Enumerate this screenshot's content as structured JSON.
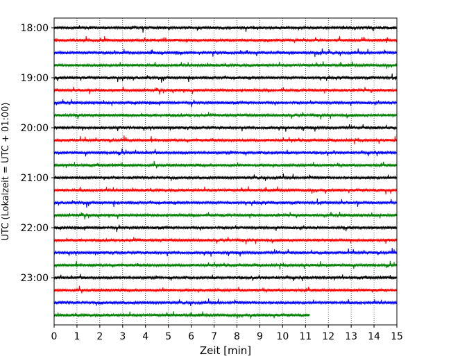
{
  "chart_data": {
    "type": "line",
    "chart_kind": "seismogram helicorder",
    "xlabel": "Zeit  [min]",
    "ylabel": "UTC (Lokalzeit = UTC + 01:00)",
    "xlim": [
      0,
      15
    ],
    "x_ticks": [
      "0",
      "1",
      "2",
      "3",
      "4",
      "5",
      "6",
      "7",
      "8",
      "9",
      "10",
      "11",
      "12",
      "13",
      "14",
      "15"
    ],
    "y_tick_labels": [
      "18:00",
      "19:00",
      "20:00",
      "21:00",
      "22:00",
      "23:00"
    ],
    "grid": "vertical dotted lines at each minute",
    "trace_interval_minutes": 15,
    "trace_colors": [
      "#000000",
      "#ff0000",
      "#0000ff",
      "#008000"
    ],
    "series": [
      {
        "start": "18:00",
        "color": "#000000",
        "x_end": 15
      },
      {
        "start": "18:15",
        "color": "#ff0000",
        "x_end": 15
      },
      {
        "start": "18:30",
        "color": "#0000ff",
        "x_end": 15
      },
      {
        "start": "18:45",
        "color": "#008000",
        "x_end": 15
      },
      {
        "start": "19:00",
        "color": "#000000",
        "x_end": 15
      },
      {
        "start": "19:15",
        "color": "#ff0000",
        "x_end": 15
      },
      {
        "start": "19:30",
        "color": "#0000ff",
        "x_end": 15
      },
      {
        "start": "19:45",
        "color": "#008000",
        "x_end": 15
      },
      {
        "start": "20:00",
        "color": "#000000",
        "x_end": 15
      },
      {
        "start": "20:15",
        "color": "#ff0000",
        "x_end": 15
      },
      {
        "start": "20:30",
        "color": "#0000ff",
        "x_end": 15
      },
      {
        "start": "20:45",
        "color": "#008000",
        "x_end": 15
      },
      {
        "start": "21:00",
        "color": "#000000",
        "x_end": 15
      },
      {
        "start": "21:15",
        "color": "#ff0000",
        "x_end": 15
      },
      {
        "start": "21:30",
        "color": "#0000ff",
        "x_end": 15
      },
      {
        "start": "21:45",
        "color": "#008000",
        "x_end": 15
      },
      {
        "start": "22:00",
        "color": "#000000",
        "x_end": 15
      },
      {
        "start": "22:15",
        "color": "#ff0000",
        "x_end": 15
      },
      {
        "start": "22:30",
        "color": "#0000ff",
        "x_end": 15
      },
      {
        "start": "22:45",
        "color": "#008000",
        "x_end": 15
      },
      {
        "start": "23:00",
        "color": "#000000",
        "x_end": 15
      },
      {
        "start": "23:15",
        "color": "#ff0000",
        "x_end": 15
      },
      {
        "start": "23:30",
        "color": "#0000ff",
        "x_end": 15
      },
      {
        "start": "23:45",
        "color": "#008000",
        "x_end": 11.2
      }
    ]
  }
}
